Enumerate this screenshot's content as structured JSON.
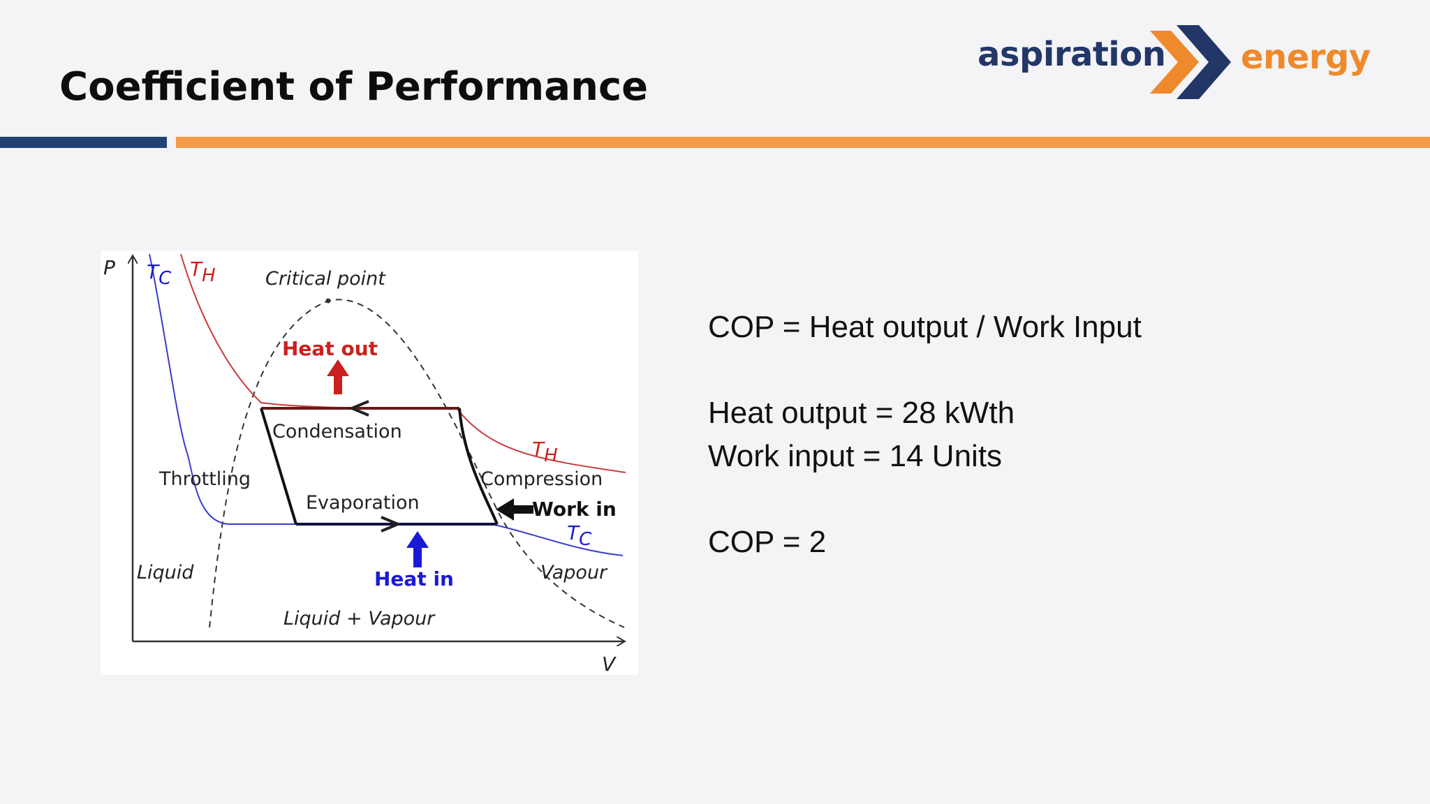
{
  "slide": {
    "title": "Coefficient of Performance"
  },
  "logo": {
    "word_left": "aspiration",
    "word_right": "energy",
    "colors": {
      "navy": "#223668",
      "orange": "#ee8a2c"
    }
  },
  "accent_bars": {
    "blue": "#214374",
    "orange": "#f49a45"
  },
  "diagram": {
    "axis_p": "P",
    "axis_v": "V",
    "labels": {
      "tc_top": "T",
      "tc_top_sub": "C",
      "th_top": "T",
      "th_top_sub": "H",
      "critical_point": "Critical point",
      "heat_out": "Heat out",
      "condensation": "Condensation",
      "th_right": "T",
      "th_right_sub": "H",
      "throttling": "Throttling",
      "compression": "Compression",
      "evaporation": "Evaporation",
      "work_in": "Work in",
      "tc_right": "T",
      "tc_right_sub": "C",
      "liquid": "Liquid",
      "heat_in": "Heat in",
      "vapour": "Vapour",
      "liquid_vapour": "Liquid + Vapour"
    },
    "colors": {
      "hot": "#cc1f1f",
      "cold": "#1a1ad6",
      "cold_curve": "#3b3bd0",
      "hot_curve": "#c83a3a"
    }
  },
  "equations": {
    "line1": "COP = Heat output / Work Input",
    "line2": "Heat output = 28 kWth",
    "line3": "Work input = 14 Units",
    "line4": "COP = 2"
  }
}
